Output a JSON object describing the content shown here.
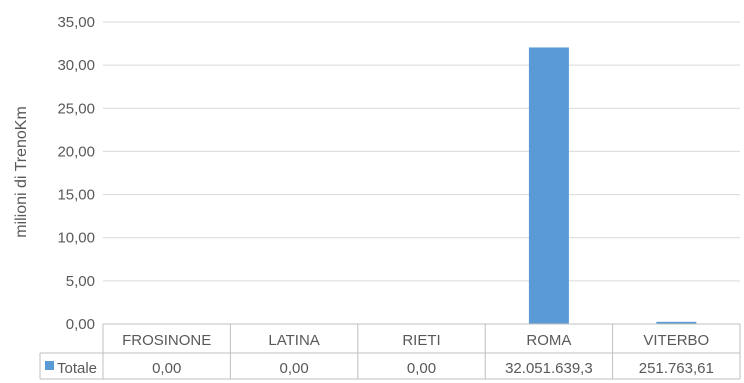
{
  "colors": {
    "bar": "#5B9BD5",
    "grid": "#D9D9D9",
    "text": "#595959",
    "table_border": "#BFBFBF"
  },
  "chart_data": {
    "type": "bar",
    "title": "",
    "xlabel": "",
    "ylabel": "milioni di TrenoKm",
    "ylim": [
      0,
      35
    ],
    "yticks": [
      "0,00",
      "5,00",
      "10,00",
      "15,00",
      "20,00",
      "25,00",
      "30,00",
      "35,00"
    ],
    "ytick_values": [
      0,
      5,
      10,
      15,
      20,
      25,
      30,
      35
    ],
    "grid": true,
    "legend": "data-table",
    "categories": [
      "FROSINONE",
      "LATINA",
      "RIETI",
      "ROMA",
      "VITERBO"
    ],
    "series": [
      {
        "name": "Totale",
        "values": [
          0,
          0,
          0,
          32.0516393,
          0.25176361
        ],
        "labels": [
          "0,00",
          "0,00",
          "0,00",
          "32.051.639,3",
          "251.763,61"
        ]
      }
    ]
  }
}
